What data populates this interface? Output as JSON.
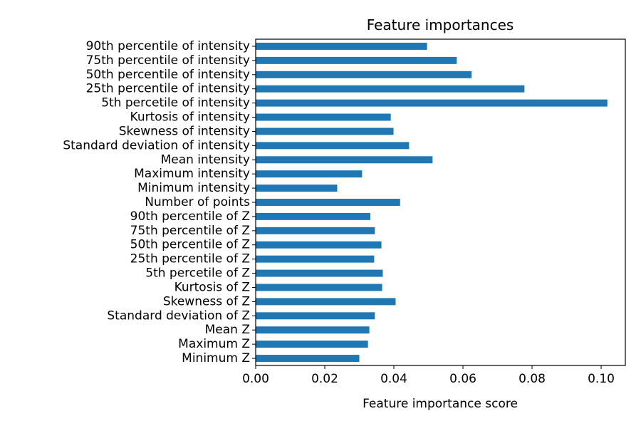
{
  "chart_data": {
    "type": "bar",
    "orientation": "horizontal",
    "title": "Feature importances",
    "xlabel": "Feature importance score",
    "ylabel": "",
    "xlim": [
      0,
      0.107
    ],
    "xticks": [
      "0.00",
      "0.02",
      "0.04",
      "0.06",
      "0.08",
      "0.10"
    ],
    "grid": false,
    "bar_color": "#1f77b4",
    "categories": [
      "90th percentile of intensity",
      "75th percentile of intensity",
      "50th percentile of intensity",
      "25th percentile of intensity",
      "5th percetile of intensity",
      "Kurtosis of intensity",
      "Skewness of intensity",
      "Standard deviation of intensity",
      "Mean intensity",
      "Maximum intensity",
      "Minimum intensity",
      "Number of points",
      "90th percentile of Z",
      "75th percentile of Z",
      "50th percentile of Z",
      "25th percentile of Z",
      "5th percetile of Z",
      "Kurtosis of Z",
      "Skewness of Z",
      "Standard deviation of Z",
      "Mean Z",
      "Maximum Z",
      "Minimum Z"
    ],
    "values": [
      0.0496,
      0.0582,
      0.0625,
      0.0778,
      0.1018,
      0.0391,
      0.0399,
      0.0444,
      0.0512,
      0.0308,
      0.0236,
      0.0418,
      0.0332,
      0.0345,
      0.0364,
      0.0343,
      0.0368,
      0.0366,
      0.0405,
      0.0345,
      0.0329,
      0.0325,
      0.03
    ]
  }
}
